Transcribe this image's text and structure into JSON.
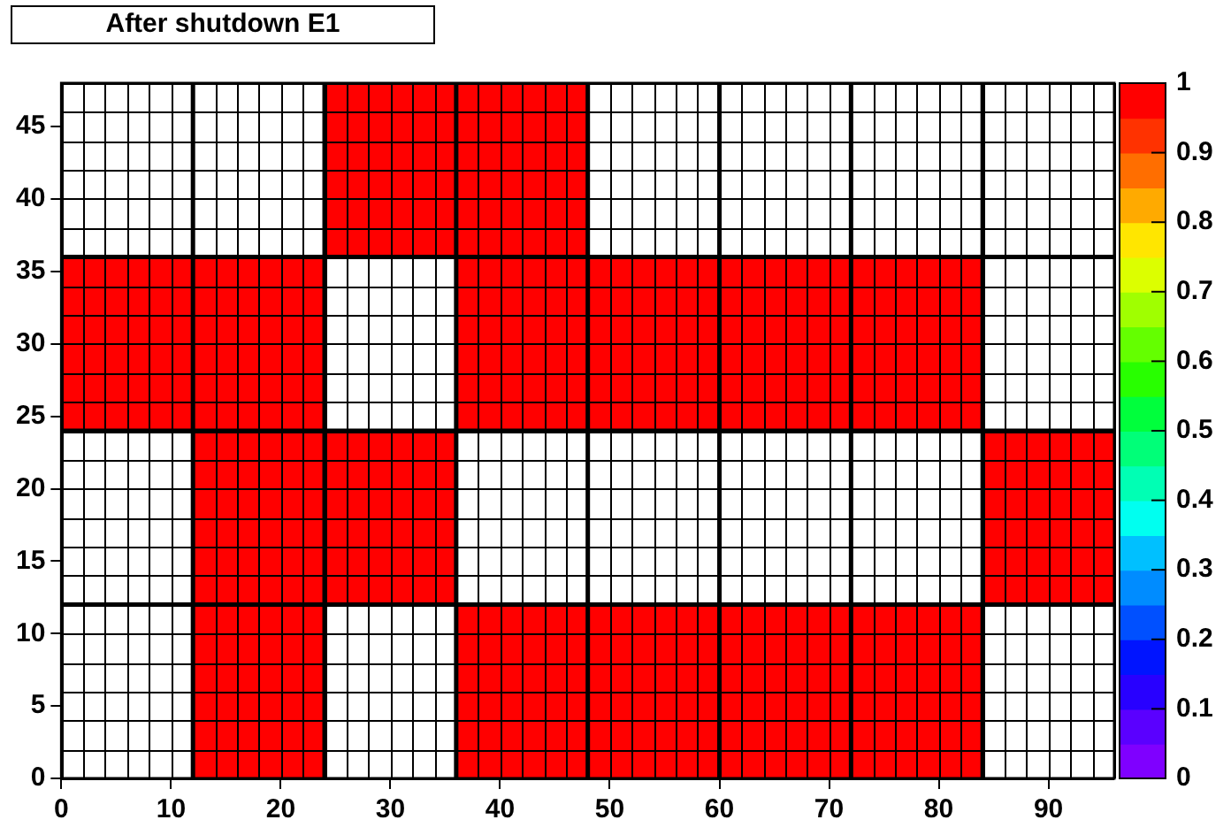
{
  "chart_data": {
    "type": "heatmap",
    "title": "After shutdown E1",
    "x": [
      1,
      3,
      5,
      7,
      9,
      11,
      13,
      15,
      17,
      19,
      21,
      23,
      25,
      27,
      29,
      31,
      33,
      35,
      37,
      39,
      41,
      43,
      45,
      47,
      49,
      51,
      53,
      55,
      57,
      59,
      61,
      63,
      65,
      67,
      69,
      71,
      73,
      75,
      77,
      79,
      81,
      83,
      85,
      87,
      89,
      91,
      93,
      95
    ],
    "y": [
      47,
      45,
      43,
      41,
      39,
      37,
      35,
      33,
      31,
      29,
      27,
      25,
      23,
      21,
      19,
      17,
      15,
      13,
      11,
      9,
      7,
      5,
      3,
      1
    ],
    "xlim": [
      0,
      96
    ],
    "xticks": [
      0,
      10,
      20,
      30,
      40,
      50,
      60,
      70,
      80,
      90
    ],
    "ylim": [
      0,
      48
    ],
    "yticks": [
      0,
      5,
      10,
      15,
      20,
      25,
      30,
      35,
      40,
      45
    ],
    "clim": [
      0,
      1
    ],
    "cticks": [
      0,
      0.1,
      0.2,
      0.3,
      0.4,
      0.5,
      0.6,
      0.7,
      0.8,
      0.9,
      1
    ],
    "ref_lines": [
      {
        "axis": "x",
        "value": 12
      },
      {
        "axis": "x",
        "value": 24
      },
      {
        "axis": "x",
        "value": 36
      },
      {
        "axis": "x",
        "value": 48
      },
      {
        "axis": "x",
        "value": 60
      },
      {
        "axis": "x",
        "value": 72
      },
      {
        "axis": "x",
        "value": 84
      },
      {
        "axis": "y",
        "value": 12
      },
      {
        "axis": "y",
        "value": 24
      },
      {
        "axis": "y",
        "value": 36
      }
    ],
    "legend": false,
    "grid": true,
    "cells": [
      [
        null,
        null,
        null,
        null,
        null,
        null,
        null,
        null,
        null,
        null,
        null,
        null,
        1,
        1,
        1,
        1,
        1,
        1,
        1,
        1,
        1,
        1,
        1,
        1,
        null,
        null,
        null,
        null,
        null,
        null,
        null,
        null,
        null,
        null,
        null,
        null,
        null,
        null,
        null,
        null,
        null,
        null,
        null,
        null,
        null,
        null,
        null,
        null
      ],
      [
        null,
        null,
        null,
        null,
        null,
        null,
        null,
        null,
        null,
        null,
        null,
        null,
        1,
        1,
        1,
        1,
        1,
        1,
        1,
        1,
        1,
        1,
        1,
        1,
        null,
        null,
        null,
        null,
        null,
        null,
        null,
        null,
        null,
        null,
        null,
        null,
        null,
        null,
        null,
        null,
        null,
        null,
        null,
        null,
        null,
        null,
        null,
        null
      ],
      [
        null,
        null,
        null,
        null,
        null,
        null,
        null,
        null,
        null,
        null,
        null,
        null,
        1,
        1,
        1,
        1,
        1,
        1,
        1,
        1,
        1,
        1,
        1,
        1,
        null,
        null,
        null,
        null,
        null,
        null,
        null,
        null,
        null,
        null,
        null,
        null,
        null,
        null,
        null,
        null,
        null,
        null,
        null,
        null,
        null,
        null,
        null,
        null
      ],
      [
        null,
        null,
        null,
        null,
        null,
        null,
        null,
        null,
        null,
        null,
        null,
        null,
        1,
        1,
        1,
        1,
        1,
        1,
        1,
        1,
        1,
        1,
        1,
        1,
        null,
        null,
        null,
        null,
        null,
        null,
        null,
        null,
        null,
        null,
        null,
        null,
        null,
        null,
        null,
        null,
        null,
        null,
        null,
        null,
        null,
        null,
        null,
        null
      ],
      [
        null,
        null,
        null,
        null,
        null,
        null,
        null,
        null,
        null,
        null,
        null,
        null,
        1,
        1,
        1,
        1,
        1,
        1,
        1,
        1,
        1,
        1,
        1,
        1,
        null,
        null,
        null,
        null,
        null,
        null,
        null,
        null,
        null,
        null,
        null,
        null,
        null,
        null,
        null,
        null,
        null,
        null,
        null,
        null,
        null,
        null,
        null,
        null
      ],
      [
        null,
        null,
        null,
        null,
        null,
        null,
        null,
        null,
        null,
        null,
        null,
        null,
        1,
        1,
        1,
        1,
        1,
        1,
        1,
        1,
        1,
        1,
        1,
        1,
        null,
        null,
        null,
        null,
        null,
        null,
        null,
        null,
        null,
        null,
        null,
        null,
        null,
        null,
        null,
        null,
        null,
        null,
        null,
        null,
        null,
        null,
        null,
        null
      ],
      [
        1,
        1,
        1,
        1,
        1,
        1,
        1,
        1,
        1,
        1,
        1,
        1,
        null,
        null,
        null,
        null,
        null,
        null,
        1,
        1,
        1,
        1,
        1,
        1,
        1,
        1,
        1,
        1,
        1,
        1,
        1,
        1,
        1,
        1,
        1,
        1,
        1,
        1,
        1,
        1,
        1,
        1,
        null,
        null,
        null,
        null,
        null,
        null
      ],
      [
        1,
        1,
        1,
        1,
        1,
        1,
        1,
        1,
        1,
        1,
        1,
        1,
        null,
        null,
        null,
        null,
        null,
        null,
        1,
        1,
        1,
        1,
        1,
        1,
        1,
        1,
        1,
        1,
        1,
        1,
        1,
        1,
        1,
        1,
        1,
        1,
        1,
        1,
        1,
        1,
        1,
        1,
        null,
        null,
        null,
        null,
        null,
        null
      ],
      [
        1,
        1,
        1,
        1,
        1,
        1,
        1,
        1,
        1,
        1,
        1,
        1,
        null,
        null,
        null,
        null,
        null,
        null,
        1,
        1,
        1,
        1,
        1,
        1,
        1,
        1,
        1,
        1,
        1,
        1,
        1,
        1,
        1,
        1,
        1,
        1,
        1,
        1,
        1,
        1,
        1,
        1,
        null,
        null,
        null,
        null,
        null,
        null
      ],
      [
        1,
        1,
        1,
        1,
        1,
        1,
        1,
        1,
        1,
        1,
        1,
        1,
        null,
        null,
        null,
        null,
        null,
        null,
        1,
        1,
        1,
        1,
        1,
        1,
        1,
        1,
        1,
        1,
        1,
        1,
        1,
        1,
        1,
        1,
        1,
        1,
        1,
        1,
        1,
        1,
        1,
        1,
        null,
        null,
        null,
        null,
        null,
        null
      ],
      [
        1,
        1,
        1,
        1,
        1,
        1,
        1,
        1,
        1,
        1,
        1,
        1,
        null,
        null,
        null,
        null,
        null,
        null,
        1,
        1,
        1,
        1,
        1,
        1,
        1,
        1,
        1,
        1,
        1,
        1,
        1,
        1,
        1,
        1,
        1,
        1,
        1,
        1,
        1,
        1,
        1,
        1,
        null,
        null,
        null,
        null,
        null,
        null
      ],
      [
        1,
        1,
        1,
        1,
        1,
        1,
        1,
        1,
        1,
        1,
        1,
        1,
        null,
        null,
        null,
        null,
        null,
        null,
        1,
        1,
        1,
        1,
        1,
        1,
        1,
        1,
        1,
        1,
        1,
        1,
        1,
        1,
        1,
        1,
        1,
        1,
        1,
        1,
        1,
        1,
        1,
        1,
        null,
        null,
        null,
        null,
        null,
        null
      ],
      [
        null,
        null,
        null,
        null,
        null,
        null,
        1,
        1,
        1,
        1,
        1,
        1,
        1,
        1,
        1,
        1,
        1,
        1,
        null,
        null,
        null,
        null,
        null,
        null,
        null,
        null,
        null,
        null,
        null,
        null,
        null,
        null,
        null,
        null,
        null,
        null,
        null,
        null,
        null,
        null,
        null,
        null,
        1,
        1,
        1,
        1,
        1,
        1
      ],
      [
        null,
        null,
        null,
        null,
        null,
        null,
        1,
        1,
        1,
        1,
        1,
        1,
        1,
        1,
        1,
        1,
        1,
        1,
        null,
        null,
        null,
        null,
        null,
        null,
        null,
        null,
        null,
        null,
        null,
        null,
        null,
        null,
        null,
        null,
        null,
        null,
        null,
        null,
        null,
        null,
        null,
        null,
        1,
        1,
        1,
        1,
        1,
        1
      ],
      [
        null,
        null,
        null,
        null,
        null,
        null,
        1,
        1,
        1,
        1,
        1,
        1,
        1,
        1,
        1,
        1,
        1,
        1,
        null,
        null,
        null,
        null,
        null,
        null,
        null,
        null,
        null,
        null,
        null,
        null,
        null,
        null,
        null,
        null,
        null,
        null,
        null,
        null,
        null,
        null,
        null,
        null,
        1,
        1,
        1,
        1,
        1,
        1
      ],
      [
        null,
        null,
        null,
        null,
        null,
        null,
        1,
        1,
        1,
        1,
        1,
        1,
        1,
        1,
        1,
        1,
        1,
        1,
        null,
        null,
        null,
        null,
        null,
        null,
        null,
        null,
        null,
        null,
        null,
        null,
        null,
        null,
        null,
        null,
        null,
        null,
        null,
        null,
        null,
        null,
        null,
        null,
        1,
        1,
        1,
        1,
        1,
        1
      ],
      [
        null,
        null,
        null,
        null,
        null,
        null,
        1,
        1,
        1,
        1,
        1,
        1,
        1,
        1,
        1,
        1,
        1,
        1,
        null,
        null,
        null,
        null,
        null,
        null,
        null,
        null,
        null,
        null,
        null,
        null,
        null,
        null,
        null,
        null,
        null,
        null,
        null,
        null,
        null,
        null,
        null,
        null,
        1,
        1,
        1,
        1,
        1,
        1
      ],
      [
        null,
        null,
        null,
        null,
        null,
        null,
        1,
        1,
        1,
        1,
        1,
        1,
        1,
        1,
        1,
        1,
        1,
        1,
        null,
        null,
        null,
        null,
        null,
        null,
        null,
        null,
        null,
        null,
        null,
        null,
        null,
        null,
        null,
        null,
        null,
        null,
        null,
        null,
        null,
        null,
        null,
        null,
        1,
        1,
        1,
        1,
        1,
        1
      ],
      [
        null,
        null,
        null,
        null,
        null,
        null,
        1,
        1,
        1,
        1,
        1,
        1,
        null,
        null,
        null,
        null,
        null,
        null,
        1,
        1,
        1,
        1,
        1,
        1,
        1,
        1,
        1,
        1,
        1,
        1,
        1,
        1,
        1,
        1,
        1,
        1,
        1,
        1,
        1,
        1,
        1,
        1,
        null,
        null,
        null,
        null,
        null,
        null
      ],
      [
        null,
        null,
        null,
        null,
        null,
        null,
        1,
        1,
        1,
        1,
        1,
        1,
        null,
        null,
        null,
        null,
        null,
        null,
        1,
        1,
        1,
        1,
        1,
        1,
        1,
        1,
        1,
        1,
        1,
        1,
        1,
        1,
        1,
        1,
        1,
        1,
        1,
        1,
        1,
        1,
        1,
        1,
        null,
        null,
        null,
        null,
        null,
        null
      ],
      [
        null,
        null,
        null,
        null,
        null,
        null,
        1,
        1,
        1,
        1,
        1,
        1,
        null,
        null,
        null,
        null,
        null,
        null,
        1,
        1,
        1,
        1,
        1,
        1,
        1,
        1,
        1,
        1,
        1,
        1,
        1,
        1,
        1,
        1,
        1,
        1,
        1,
        1,
        1,
        1,
        1,
        1,
        null,
        null,
        null,
        null,
        null,
        null
      ],
      [
        null,
        null,
        null,
        null,
        null,
        null,
        1,
        1,
        1,
        1,
        1,
        1,
        null,
        null,
        null,
        null,
        null,
        null,
        1,
        1,
        1,
        1,
        1,
        1,
        1,
        1,
        1,
        1,
        1,
        1,
        1,
        1,
        1,
        1,
        1,
        1,
        1,
        1,
        1,
        1,
        1,
        1,
        null,
        null,
        null,
        null,
        null,
        null
      ],
      [
        null,
        null,
        null,
        null,
        null,
        null,
        1,
        1,
        1,
        1,
        1,
        1,
        null,
        null,
        null,
        null,
        null,
        null,
        1,
        1,
        1,
        1,
        1,
        1,
        1,
        1,
        1,
        1,
        1,
        1,
        1,
        1,
        1,
        1,
        1,
        1,
        1,
        1,
        1,
        1,
        1,
        1,
        null,
        null,
        null,
        null,
        null,
        null
      ],
      [
        null,
        null,
        null,
        null,
        null,
        null,
        1,
        1,
        1,
        1,
        1,
        1,
        null,
        null,
        null,
        null,
        null,
        null,
        1,
        1,
        1,
        1,
        1,
        1,
        1,
        1,
        1,
        1,
        1,
        1,
        1,
        1,
        1,
        1,
        1,
        1,
        1,
        1,
        1,
        1,
        1,
        1,
        null,
        null,
        null,
        null,
        null,
        null
      ]
    ]
  }
}
